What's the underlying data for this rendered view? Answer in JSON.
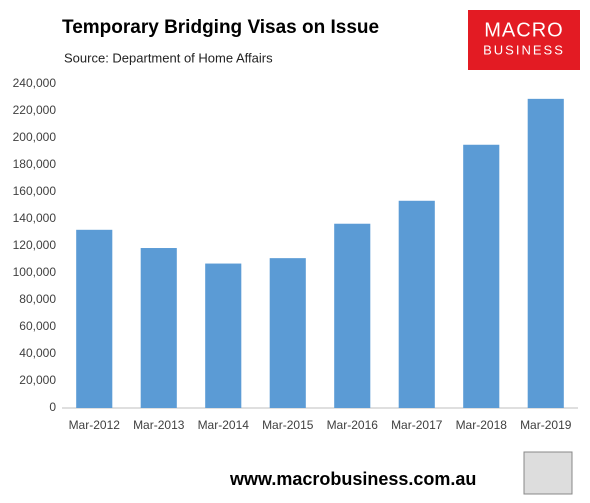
{
  "chart_data": {
    "type": "bar",
    "title": "Temporary Bridging Visas on Issue",
    "subtitle": "Source: Department of Home Affairs",
    "logo": [
      "MACRO",
      "BUSINESS"
    ],
    "footer": "www.macrobusiness.com.au",
    "categories": [
      "Mar-2012",
      "Mar-2013",
      "Mar-2014",
      "Mar-2015",
      "Mar-2016",
      "Mar-2017",
      "Mar-2018",
      "Mar-2019"
    ],
    "values": [
      132000,
      118500,
      107000,
      111000,
      136500,
      153500,
      195000,
      229000
    ],
    "color": "#5b9bd5",
    "ylim": [
      0,
      240000
    ],
    "yticks": [
      0,
      {
        "value": 20000,
        "label": "20,000"
      },
      {
        "value": 40000,
        "label": "40,000"
      },
      {
        "value": 60000,
        "label": "60,000"
      },
      {
        "value": 80000,
        "label": "80,000"
      },
      {
        "value": 100000,
        "label": "100,000"
      },
      {
        "value": 120000,
        "label": "120,000"
      },
      {
        "value": 140000,
        "label": "140,000"
      },
      {
        "value": 160000,
        "label": "160,000"
      },
      {
        "value": 180000,
        "label": "180,000"
      },
      {
        "value": 200000,
        "label": "200,000"
      },
      {
        "value": 220000,
        "label": "220,000"
      },
      {
        "value": 240000,
        "label": "240,000"
      }
    ],
    "grid": false
  }
}
